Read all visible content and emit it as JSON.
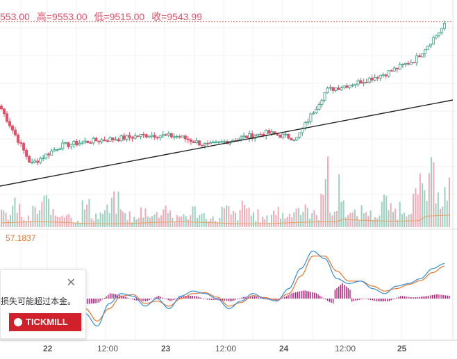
{
  "header": {
    "open": "553.00",
    "high_label": "高=",
    "high": "9553.00",
    "low_label": "低=",
    "low": "9515.00",
    "close_label": "收=",
    "close": "9543.99"
  },
  "indicator": {
    "value": "57.1837"
  },
  "popup": {
    "message": "损失可能超过本金。",
    "brand": "TICKMILL"
  },
  "colors": {
    "up": "#2e9e7f",
    "down": "#e0506a",
    "ohlc_text": "#e0506a",
    "osc_main": "#2f8fd8",
    "osc_signal": "#e8732c",
    "histogram": "#b21a7a"
  },
  "chart_data": [
    {
      "type": "line",
      "title": "",
      "description_series": [
        {
          "name": "",
          "x": [
            "21 18:00",
            "22 00:00",
            "22 06:00",
            "22 12:00",
            "22 18:00",
            "23 00:00",
            "23 06:00",
            "23 12:00",
            "23 18:00",
            "24 00:00",
            "24 06:00",
            "24 12:00",
            "24 18:00",
            "25 00:00",
            "25 06:00",
            "25 12:00"
          ],
          "values": [
            9450,
            9390,
            9410,
            9415,
            9418,
            9422,
            9420,
            9410,
            9418,
            9424,
            9418,
            9470,
            9478,
            9488,
            9503,
            9540
          ]
        }
      ],
      "x_ticks": [
        "22",
        "12:00",
        "23",
        "12:00",
        "24",
        "12:00",
        "25"
      ],
      "ylim": [
        9380,
        9560
      ],
      "reference_line": 9543.99
    },
    {
      "type": "bar",
      "title": "",
      "categories_note": "volume",
      "values": [
        3,
        5,
        2,
        4,
        6,
        3,
        4,
        2,
        5,
        3,
        4,
        6,
        3,
        2,
        4,
        3,
        5,
        2,
        3,
        4,
        3,
        2,
        4,
        3,
        5,
        3,
        2,
        4,
        3,
        5,
        4,
        3,
        12,
        4,
        5,
        3,
        4,
        3,
        6,
        4,
        5,
        7,
        9,
        12,
        8,
        10
      ]
    },
    {
      "type": "line",
      "title": "",
      "series": [
        {
          "name": "",
          "values": [
            30,
            20,
            -10,
            -25,
            5,
            15,
            10,
            -30,
            -55,
            -10,
            10,
            5,
            -15,
            0,
            -20,
            5,
            15,
            10,
            0,
            -20,
            -5,
            10,
            0,
            -5,
            20,
            60,
            95,
            80,
            40,
            30,
            35,
            20,
            10,
            25,
            30,
            40,
            60,
            70
          ]
        },
        {
          "name": "",
          "values": [
            25,
            22,
            0,
            -20,
            0,
            12,
            12,
            -20,
            -45,
            -20,
            5,
            8,
            -10,
            -5,
            -15,
            0,
            10,
            12,
            3,
            -15,
            -8,
            6,
            2,
            -3,
            10,
            45,
            85,
            85,
            55,
            35,
            35,
            25,
            15,
            20,
            28,
            36,
            52,
            65
          ]
        }
      ],
      "histogram_values": [
        5,
        -2,
        -8,
        -5,
        5,
        3,
        -2,
        -10,
        -8,
        10,
        5,
        -3,
        -5,
        5,
        -5,
        5,
        5,
        -2,
        -3,
        -5,
        3,
        4,
        -2,
        -2,
        10,
        15,
        10,
        -5,
        -15,
        -5,
        0,
        -5,
        -5,
        5,
        2,
        4,
        8,
        5
      ],
      "current_value": 57.1837
    }
  ]
}
